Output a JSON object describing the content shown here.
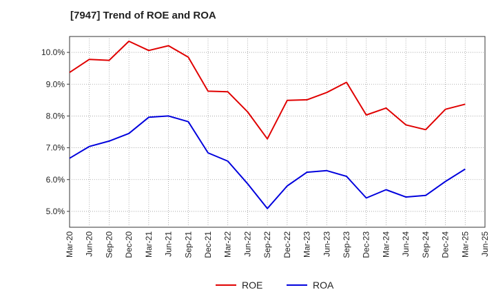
{
  "chart_data": {
    "type": "line",
    "title": "[7947]  Trend of ROE and ROA",
    "xlabel": "",
    "ylabel": "",
    "categories": [
      "Mar-20",
      "Jun-20",
      "Sep-20",
      "Dec-20",
      "Mar-21",
      "Jun-21",
      "Sep-21",
      "Dec-21",
      "Mar-22",
      "Jun-22",
      "Sep-22",
      "Dec-22",
      "Mar-23",
      "Jun-23",
      "Sep-23",
      "Dec-23",
      "Mar-24",
      "Jun-24",
      "Sep-24",
      "Dec-24",
      "Mar-25",
      "Jun-25"
    ],
    "ylim": [
      4.5,
      10.5
    ],
    "yticks": [
      5.0,
      6.0,
      7.0,
      8.0,
      9.0,
      10.0
    ],
    "ytick_labels": [
      "5.0%",
      "6.0%",
      "7.0%",
      "8.0%",
      "9.0%",
      "10.0%"
    ],
    "grid": true,
    "legend_position": "bottom",
    "series": [
      {
        "name": "ROE",
        "color": "#e00000",
        "values": [
          9.37,
          9.78,
          9.75,
          10.35,
          10.06,
          10.21,
          9.85,
          8.78,
          8.76,
          8.13,
          7.28,
          8.49,
          8.51,
          8.74,
          9.06,
          8.03,
          8.25,
          7.72,
          7.57,
          8.21,
          8.37,
          null
        ]
      },
      {
        "name": "ROA",
        "color": "#0000dd",
        "values": [
          6.67,
          7.04,
          7.21,
          7.45,
          7.96,
          8.0,
          7.82,
          6.84,
          6.58,
          5.87,
          5.09,
          5.8,
          6.23,
          6.28,
          6.1,
          5.42,
          5.68,
          5.45,
          5.5,
          5.94,
          6.33,
          null
        ]
      }
    ]
  }
}
